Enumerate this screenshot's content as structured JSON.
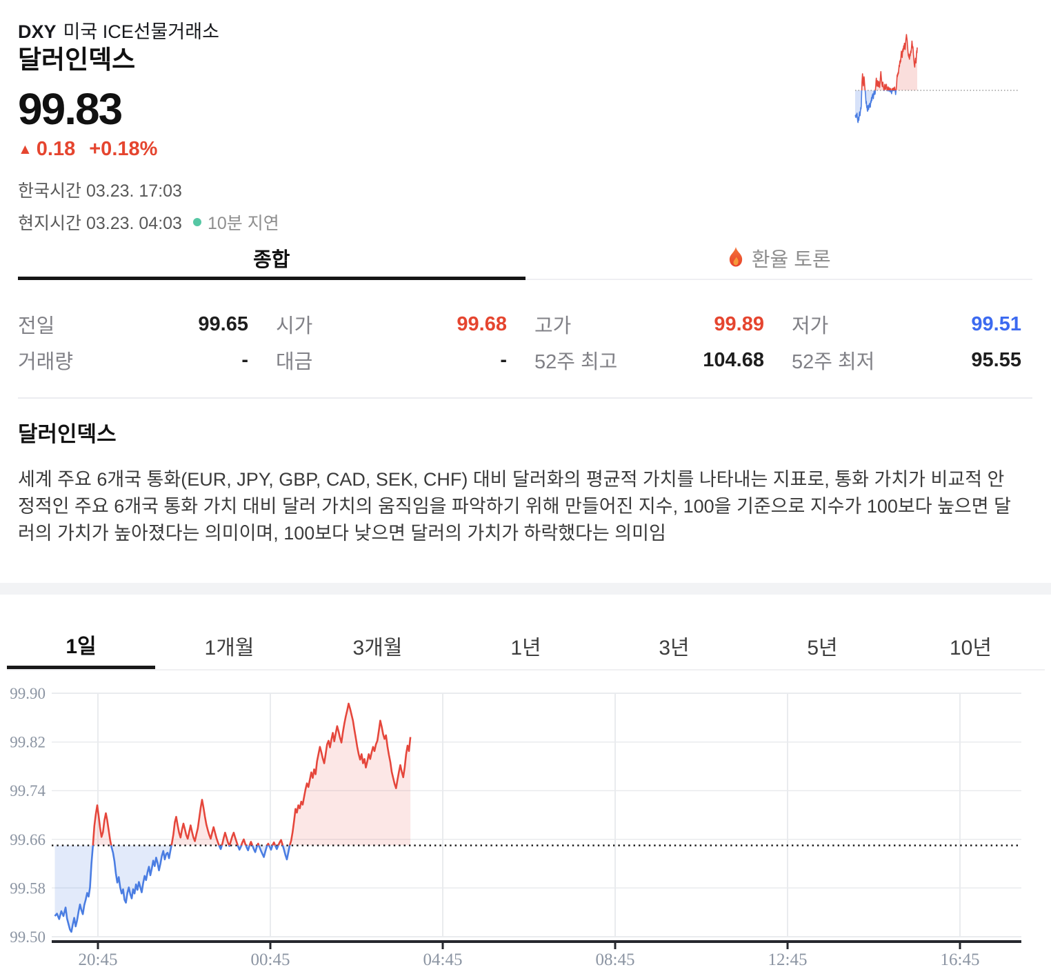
{
  "header": {
    "symbol": "DXY",
    "exchange": "미국 ICE선물거래소",
    "name": "달러인덱스",
    "price": "99.83",
    "change_arrow": "▲",
    "change_value": "0.18",
    "change_percent": "+0.18%",
    "korea_time": "한국시간 03.23. 17:03",
    "local_time": "현지시간 03.23. 04:03",
    "delay_badge": "10분 지연"
  },
  "tabs": {
    "summary": "종합",
    "discussion": "환율 토론"
  },
  "stats": {
    "rows": [
      [
        {
          "label": "전일",
          "value": "99.65",
          "tone": "plain"
        },
        {
          "label": "시가",
          "value": "99.68",
          "tone": "up"
        },
        {
          "label": "고가",
          "value": "99.89",
          "tone": "up"
        },
        {
          "label": "저가",
          "value": "99.51",
          "tone": "down"
        }
      ],
      [
        {
          "label": "거래량",
          "value": "-",
          "tone": "plain"
        },
        {
          "label": "대금",
          "value": "-",
          "tone": "plain"
        },
        {
          "label": "52주 최고",
          "value": "104.68",
          "tone": "plain"
        },
        {
          "label": "52주 최저",
          "value": "95.55",
          "tone": "plain"
        }
      ]
    ]
  },
  "about": {
    "title": "달러인덱스",
    "description": "세계 주요 6개국 통화(EUR, JPY, GBP, CAD, SEK, CHF) 대비 달러화의 평균적 가치를 나타내는 지표로, 통화 가치가 비교적 안정적인 주요 6개국 통화 가치 대비 달러 가치의 움직임을 파악하기 위해 만들어진 지수, 100을 기준으로 지수가 100보다 높으면 달러의 가치가 높아졌다는 의미이며, 100보다 낮으면 달러의 가치가 하락했다는 의미임"
  },
  "periods": [
    "1일",
    "1개월",
    "3개월",
    "1년",
    "3년",
    "5년",
    "10년"
  ],
  "active_period": "1일",
  "colors": {
    "up": "#e5452f",
    "down": "#3c6af0",
    "chart_up_line": "#e5463b",
    "chart_down_line": "#4a7de2",
    "delay_dot": "#56c7a4",
    "gridline": "#e9ebee",
    "axis_bar": "#26282e",
    "axis_label": "#8b94a2"
  },
  "chart_data": {
    "type": "area",
    "title": "달러인덱스 1일 차트",
    "baseline_prev_close": 99.65,
    "ylim": [
      99.5,
      99.9
    ],
    "yticks": [
      "99.90",
      "99.82",
      "99.74",
      "99.66",
      "99.58",
      "99.50"
    ],
    "xticks": [
      "20:45",
      "00:45",
      "04:45",
      "08:45",
      "12:45",
      "16:45"
    ],
    "x_unit": "minutes after 19:45 local time, 16:45 axis end",
    "grid": true,
    "legend": false,
    "points": [
      [
        0,
        99.534
      ],
      [
        3,
        99.538
      ],
      [
        6,
        99.529
      ],
      [
        9,
        99.542
      ],
      [
        12,
        99.534
      ],
      [
        15,
        99.548
      ],
      [
        17,
        99.53
      ],
      [
        19,
        99.521
      ],
      [
        21,
        99.512
      ],
      [
        23,
        99.508
      ],
      [
        25,
        99.52
      ],
      [
        27,
        99.531
      ],
      [
        29,
        99.517
      ],
      [
        31,
        99.527
      ],
      [
        33,
        99.541
      ],
      [
        35,
        99.553
      ],
      [
        37,
        99.544
      ],
      [
        39,
        99.537
      ],
      [
        41,
        99.552
      ],
      [
        43,
        99.561
      ],
      [
        45,
        99.572
      ],
      [
        47,
        99.566
      ],
      [
        49,
        99.581
      ],
      [
        51,
        99.62
      ],
      [
        53,
        99.649
      ],
      [
        55,
        99.682
      ],
      [
        57,
        99.701
      ],
      [
        59,
        99.716
      ],
      [
        61,
        99.699
      ],
      [
        63,
        99.679
      ],
      [
        65,
        99.664
      ],
      [
        67,
        99.672
      ],
      [
        69,
        99.691
      ],
      [
        71,
        99.703
      ],
      [
        73,
        99.691
      ],
      [
        75,
        99.675
      ],
      [
        77,
        99.659
      ],
      [
        79,
        99.647
      ],
      [
        81,
        99.638
      ],
      [
        83,
        99.624
      ],
      [
        85,
        99.604
      ],
      [
        87,
        99.589
      ],
      [
        89,
        99.598
      ],
      [
        91,
        99.581
      ],
      [
        93,
        99.571
      ],
      [
        95,
        99.578
      ],
      [
        97,
        99.561
      ],
      [
        99,
        99.556
      ],
      [
        101,
        99.572
      ],
      [
        103,
        99.581
      ],
      [
        105,
        99.57
      ],
      [
        107,
        99.563
      ],
      [
        109,
        99.578
      ],
      [
        111,
        99.571
      ],
      [
        113,
        99.586
      ],
      [
        115,
        99.577
      ],
      [
        117,
        99.59
      ],
      [
        119,
        99.581
      ],
      [
        121,
        99.573
      ],
      [
        123,
        99.588
      ],
      [
        125,
        99.6
      ],
      [
        127,
        99.593
      ],
      [
        129,
        99.606
      ],
      [
        131,
        99.615
      ],
      [
        133,
        99.601
      ],
      [
        135,
        99.612
      ],
      [
        137,
        99.625
      ],
      [
        139,
        99.616
      ],
      [
        141,
        99.63
      ],
      [
        143,
        99.621
      ],
      [
        145,
        99.609
      ],
      [
        147,
        99.62
      ],
      [
        149,
        99.633
      ],
      [
        151,
        99.641
      ],
      [
        153,
        99.627
      ],
      [
        155,
        99.636
      ],
      [
        157,
        99.638
      ],
      [
        159,
        99.629
      ],
      [
        161,
        99.642
      ],
      [
        163,
        99.654
      ],
      [
        165,
        99.668
      ],
      [
        167,
        99.688
      ],
      [
        169,
        99.697
      ],
      [
        171,
        99.683
      ],
      [
        173,
        99.671
      ],
      [
        175,
        99.663
      ],
      [
        177,
        99.676
      ],
      [
        179,
        99.686
      ],
      [
        181,
        99.677
      ],
      [
        183,
        99.667
      ],
      [
        185,
        99.661
      ],
      [
        187,
        99.672
      ],
      [
        189,
        99.683
      ],
      [
        191,
        99.672
      ],
      [
        193,
        99.663
      ],
      [
        195,
        99.657
      ],
      [
        197,
        99.668
      ],
      [
        199,
        99.678
      ],
      [
        201,
        99.695
      ],
      [
        203,
        99.712
      ],
      [
        205,
        99.725
      ],
      [
        207,
        99.712
      ],
      [
        209,
        99.697
      ],
      [
        211,
        99.684
      ],
      [
        213,
        99.675
      ],
      [
        215,
        99.667
      ],
      [
        217,
        99.661
      ],
      [
        219,
        99.671
      ],
      [
        221,
        99.68
      ],
      [
        223,
        99.671
      ],
      [
        225,
        99.662
      ],
      [
        227,
        99.655
      ],
      [
        229,
        99.649
      ],
      [
        231,
        99.644
      ],
      [
        233,
        99.652
      ],
      [
        235,
        99.662
      ],
      [
        237,
        99.671
      ],
      [
        239,
        99.663
      ],
      [
        241,
        99.655
      ],
      [
        243,
        99.649
      ],
      [
        245,
        99.657
      ],
      [
        247,
        99.665
      ],
      [
        249,
        99.671
      ],
      [
        251,
        99.663
      ],
      [
        253,
        99.656
      ],
      [
        255,
        99.649
      ],
      [
        257,
        99.643
      ],
      [
        259,
        99.648
      ],
      [
        261,
        99.655
      ],
      [
        263,
        99.66
      ],
      [
        265,
        99.653
      ],
      [
        267,
        99.647
      ],
      [
        269,
        99.642
      ],
      [
        271,
        99.65
      ],
      [
        273,
        99.656
      ],
      [
        275,
        99.65
      ],
      [
        277,
        99.644
      ],
      [
        279,
        99.639
      ],
      [
        281,
        99.647
      ],
      [
        283,
        99.653
      ],
      [
        285,
        99.647
      ],
      [
        287,
        99.641
      ],
      [
        289,
        99.636
      ],
      [
        291,
        99.631
      ],
      [
        293,
        99.64
      ],
      [
        295,
        99.648
      ],
      [
        297,
        99.653
      ],
      [
        299,
        99.648
      ],
      [
        301,
        99.643
      ],
      [
        303,
        99.65
      ],
      [
        305,
        99.655
      ],
      [
        307,
        99.649
      ],
      [
        309,
        99.644
      ],
      [
        311,
        99.65
      ],
      [
        313,
        99.655
      ],
      [
        315,
        99.659
      ],
      [
        317,
        99.651
      ],
      [
        319,
        99.643
      ],
      [
        321,
        99.634
      ],
      [
        323,
        99.627
      ],
      [
        325,
        99.638
      ],
      [
        327,
        99.65
      ],
      [
        329,
        99.658
      ],
      [
        331,
        99.672
      ],
      [
        333,
        99.69
      ],
      [
        335,
        99.71
      ],
      [
        337,
        99.704
      ],
      [
        339,
        99.716
      ],
      [
        341,
        99.711
      ],
      [
        343,
        99.722
      ],
      [
        345,
        99.717
      ],
      [
        347,
        99.73
      ],
      [
        349,
        99.742
      ],
      [
        351,
        99.752
      ],
      [
        353,
        99.746
      ],
      [
        355,
        99.758
      ],
      [
        357,
        99.77
      ],
      [
        359,
        99.761
      ],
      [
        361,
        99.775
      ],
      [
        363,
        99.767
      ],
      [
        365,
        99.788
      ],
      [
        367,
        99.8
      ],
      [
        369,
        99.812
      ],
      [
        371,
        99.803
      ],
      [
        373,
        99.793
      ],
      [
        375,
        99.785
      ],
      [
        377,
        99.8
      ],
      [
        379,
        99.816
      ],
      [
        381,
        99.822
      ],
      [
        383,
        99.811
      ],
      [
        385,
        99.824
      ],
      [
        387,
        99.835
      ],
      [
        389,
        99.821
      ],
      [
        391,
        99.834
      ],
      [
        393,
        99.846
      ],
      [
        395,
        99.837
      ],
      [
        397,
        99.827
      ],
      [
        399,
        99.819
      ],
      [
        401,
        99.836
      ],
      [
        403,
        99.85
      ],
      [
        405,
        99.862
      ],
      [
        407,
        99.872
      ],
      [
        409,
        99.883
      ],
      [
        411,
        99.875
      ],
      [
        413,
        99.865
      ],
      [
        415,
        99.855
      ],
      [
        417,
        99.84
      ],
      [
        419,
        99.826
      ],
      [
        421,
        99.812
      ],
      [
        423,
        99.8
      ],
      [
        425,
        99.791
      ],
      [
        427,
        99.8
      ],
      [
        429,
        99.785
      ],
      [
        431,
        99.792
      ],
      [
        433,
        99.778
      ],
      [
        435,
        99.788
      ],
      [
        437,
        99.8
      ],
      [
        439,
        99.792
      ],
      [
        441,
        99.803
      ],
      [
        443,
        99.812
      ],
      [
        445,
        99.805
      ],
      [
        447,
        99.816
      ],
      [
        449,
        99.822
      ],
      [
        451,
        99.838
      ],
      [
        453,
        99.855
      ],
      [
        455,
        99.845
      ],
      [
        457,
        99.833
      ],
      [
        459,
        99.825
      ],
      [
        461,
        99.831
      ],
      [
        463,
        99.813
      ],
      [
        465,
        99.799
      ],
      [
        467,
        99.787
      ],
      [
        469,
        99.771
      ],
      [
        471,
        99.761
      ],
      [
        473,
        99.751
      ],
      [
        475,
        99.744
      ],
      [
        477,
        99.758
      ],
      [
        479,
        99.771
      ],
      [
        481,
        99.782
      ],
      [
        483,
        99.771
      ],
      [
        485,
        99.762
      ],
      [
        487,
        99.778
      ],
      [
        489,
        99.8
      ],
      [
        491,
        99.814
      ],
      [
        493,
        99.805
      ],
      [
        495,
        99.828
      ]
    ]
  }
}
